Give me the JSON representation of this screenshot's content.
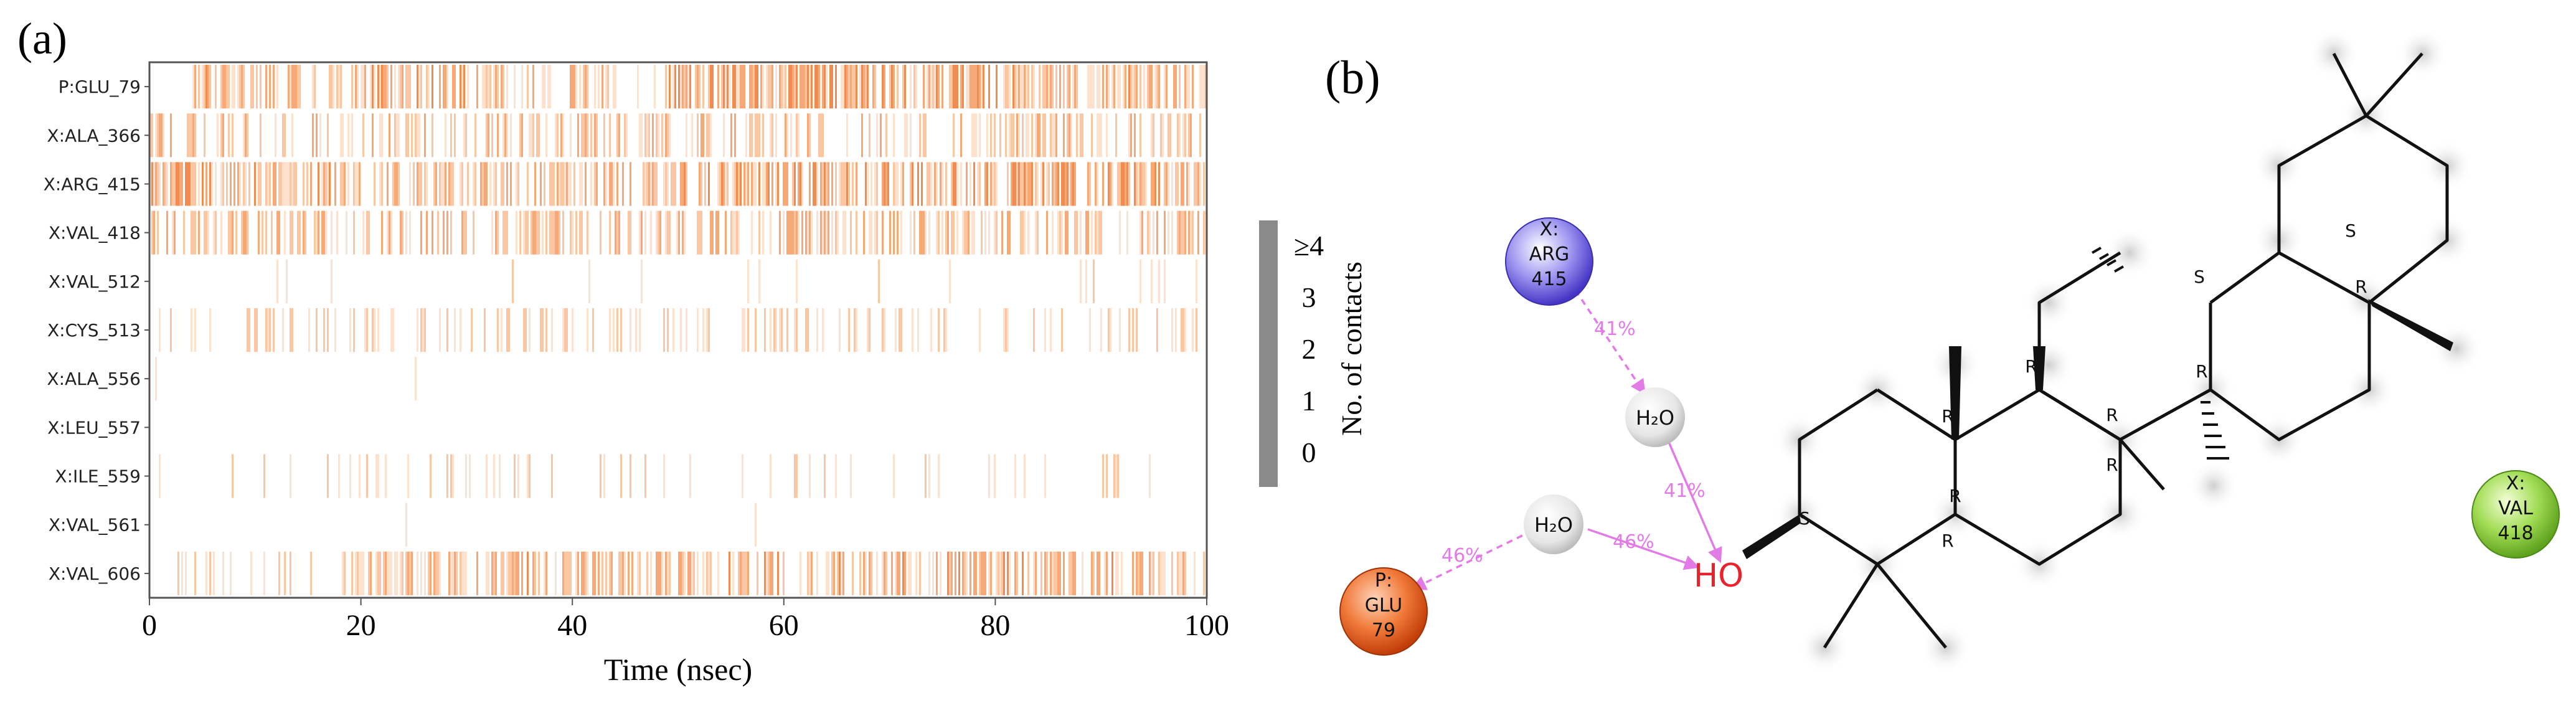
{
  "panels": {
    "a_label": "(a)",
    "b_label": "(b)"
  },
  "chart_data": {
    "type": "heatmap",
    "title": "",
    "xlabel": "Time (nsec)",
    "ylabel": "",
    "xlim": [
      0,
      100
    ],
    "x_ticks": [
      "0",
      "20",
      "40",
      "60",
      "80",
      "100"
    ],
    "rows": [
      "P:GLU_79",
      "X:ALA_366",
      "X:ARG_415",
      "X:VAL_418",
      "X:VAL_512",
      "X:CYS_513",
      "X:ALA_556",
      "X:LEU_557",
      "X:ILE_559",
      "X:VAL_561",
      "X:VAL_606"
    ],
    "density": [
      [
        [
          0,
          4,
          0.0
        ],
        [
          4,
          15,
          0.55
        ],
        [
          15,
          20,
          0.45
        ],
        [
          20,
          30,
          0.6
        ],
        [
          30,
          44,
          0.5
        ],
        [
          44,
          49,
          0.05
        ],
        [
          49,
          70,
          0.7
        ],
        [
          70,
          82,
          0.65
        ],
        [
          82,
          100,
          0.55
        ]
      ],
      [
        [
          0,
          100,
          0.35
        ]
      ],
      [
        [
          0,
          4,
          0.85
        ],
        [
          4,
          20,
          0.6
        ],
        [
          20,
          50,
          0.45
        ],
        [
          50,
          100,
          0.65
        ]
      ],
      [
        [
          0,
          100,
          0.45
        ]
      ],
      [
        [
          0,
          100,
          0.04
        ]
      ],
      [
        [
          0,
          100,
          0.22
        ]
      ],
      [
        [
          0,
          100,
          0.004
        ]
      ],
      [
        [
          0,
          100,
          0.0
        ]
      ],
      [
        [
          0,
          100,
          0.09
        ]
      ],
      [
        [
          0,
          100,
          0.004
        ]
      ],
      [
        [
          0,
          19,
          0.15
        ],
        [
          19,
          100,
          0.55
        ]
      ]
    ],
    "colorbar": {
      "label": "No. of contacts",
      "ticks": [
        "0",
        "1",
        "2",
        "3",
        "≥4"
      ]
    }
  },
  "diagram": {
    "residues": [
      {
        "chain": "X:",
        "name": "ARG",
        "num": "415",
        "color": "#6a5fd8"
      },
      {
        "chain": "P:",
        "name": "GLU",
        "num": "79",
        "color": "#e0531a"
      },
      {
        "chain": "X:",
        "name": "VAL",
        "num": "418",
        "color": "#7cc23a"
      }
    ],
    "waters": [
      "H₂O",
      "H₂O"
    ],
    "hydroxyl": "HO",
    "percentages": [
      "41%",
      "41%",
      "46%",
      "46%"
    ],
    "stereo_labels": [
      "S",
      "R",
      "R",
      "R",
      "S",
      "R",
      "R",
      "R",
      "R",
      "S",
      "R"
    ]
  }
}
